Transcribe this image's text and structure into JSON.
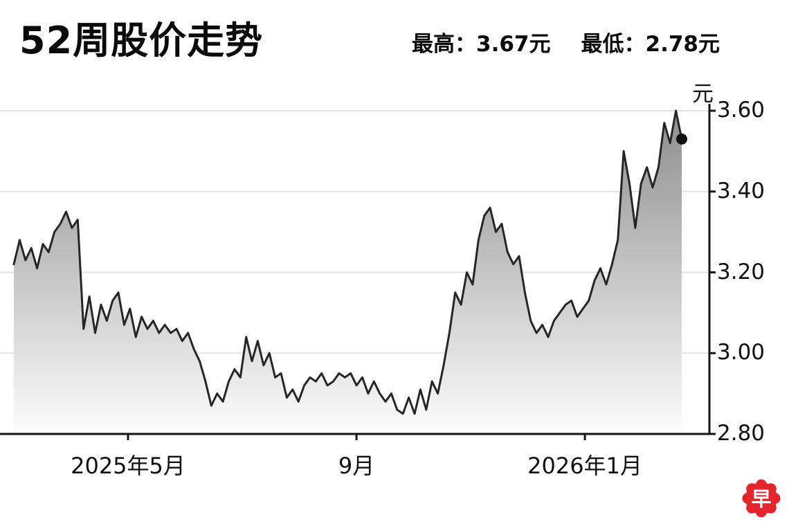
{
  "header": {
    "title": "52周股价走势",
    "high_label": "最高：3.67元",
    "low_label": "最低：2.78元"
  },
  "chart_data": {
    "type": "line",
    "title": "52周股价走势",
    "unit_label": "元",
    "high": 3.67,
    "low": 2.78,
    "ylim": [
      2.8,
      3.6
    ],
    "grid": true,
    "y_ticks": [
      3.6,
      3.4,
      3.2,
      3.0,
      2.8
    ],
    "y_tick_labels": [
      "3.60",
      "3.40",
      "3.20",
      "3.00",
      "2.80"
    ],
    "x_ticks": [
      {
        "label": "2025年5月",
        "pos": 0.171
      },
      {
        "label": "9月",
        "pos": 0.513
      },
      {
        "label": "2026年1月",
        "pos": 0.855
      }
    ],
    "last_value": 3.53,
    "end_dot": true,
    "line_color": "#262626",
    "fill_top_color": "#8d8d8d",
    "fill_bottom_color": "#fdfdfd",
    "values": [
      3.22,
      3.28,
      3.23,
      3.26,
      3.21,
      3.27,
      3.25,
      3.3,
      3.32,
      3.35,
      3.31,
      3.33,
      3.06,
      3.14,
      3.05,
      3.12,
      3.08,
      3.13,
      3.15,
      3.07,
      3.11,
      3.04,
      3.09,
      3.06,
      3.08,
      3.05,
      3.07,
      3.05,
      3.06,
      3.03,
      3.05,
      3.01,
      2.98,
      2.93,
      2.87,
      2.9,
      2.88,
      2.93,
      2.96,
      2.94,
      3.04,
      2.98,
      3.03,
      2.97,
      3.0,
      2.94,
      2.95,
      2.89,
      2.91,
      2.88,
      2.92,
      2.94,
      2.93,
      2.95,
      2.92,
      2.93,
      2.95,
      2.94,
      2.95,
      2.92,
      2.94,
      2.9,
      2.93,
      2.9,
      2.88,
      2.9,
      2.86,
      2.85,
      2.89,
      2.85,
      2.91,
      2.86,
      2.93,
      2.9,
      2.97,
      3.05,
      3.15,
      3.12,
      3.2,
      3.17,
      3.28,
      3.34,
      3.36,
      3.3,
      3.32,
      3.25,
      3.22,
      3.24,
      3.15,
      3.08,
      3.05,
      3.07,
      3.04,
      3.08,
      3.1,
      3.12,
      3.13,
      3.09,
      3.11,
      3.13,
      3.18,
      3.21,
      3.17,
      3.22,
      3.28,
      3.5,
      3.42,
      3.31,
      3.42,
      3.46,
      3.41,
      3.46,
      3.57,
      3.52,
      3.6,
      3.53
    ]
  },
  "logo": {
    "text": "早",
    "color": "#e4262c"
  }
}
